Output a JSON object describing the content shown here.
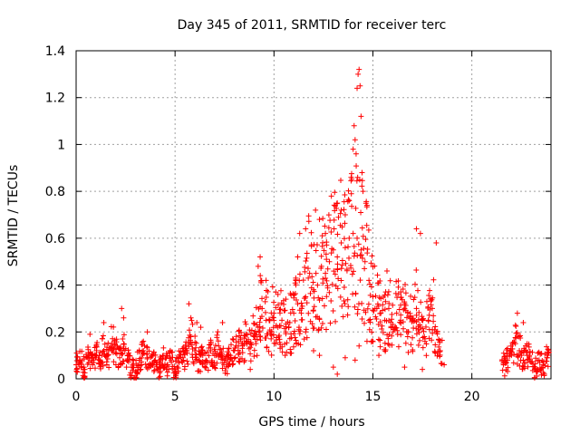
{
  "chart_data": {
    "type": "scatter",
    "title": "Day 345 of 2011, SRMTID for receiver terc",
    "xlabel": "GPS time / hours",
    "ylabel": "SRMTID / TECUs",
    "xlim": [
      0,
      24
    ],
    "ylim": [
      0,
      1.4
    ],
    "x_ticks": [
      0,
      5,
      10,
      15,
      20
    ],
    "x_tick_labels": [
      "0",
      "5",
      "10",
      "15",
      "20"
    ],
    "y_ticks": [
      0,
      0.2,
      0.4,
      0.6,
      0.8,
      1,
      1.2,
      1.4
    ],
    "y_tick_labels": [
      "0",
      "0.2",
      "0.4",
      "0.6",
      "0.8",
      "1",
      "1.2",
      "1.4"
    ],
    "grid": true,
    "marker": "+",
    "color": "#ff0000",
    "series": [
      {
        "name": "SRMTID",
        "points": [
          [
            0.0,
            0.06
          ],
          [
            0.2,
            0.08
          ],
          [
            0.4,
            0.05
          ],
          [
            0.6,
            0.09
          ],
          [
            0.8,
            0.07
          ],
          [
            1.0,
            0.1
          ],
          [
            1.2,
            0.08
          ],
          [
            1.4,
            0.12
          ],
          [
            1.6,
            0.1
          ],
          [
            1.8,
            0.15
          ],
          [
            2.0,
            0.11
          ],
          [
            2.2,
            0.09
          ],
          [
            2.4,
            0.13
          ],
          [
            2.6,
            0.08
          ],
          [
            2.8,
            0.05
          ],
          [
            3.0,
            0.03
          ],
          [
            3.2,
            0.08
          ],
          [
            3.4,
            0.12
          ],
          [
            3.6,
            0.09
          ],
          [
            3.8,
            0.06
          ],
          [
            4.0,
            0.08
          ],
          [
            4.2,
            0.05
          ],
          [
            4.4,
            0.1
          ],
          [
            4.6,
            0.06
          ],
          [
            4.8,
            0.08
          ],
          [
            5.0,
            0.04
          ],
          [
            5.2,
            0.07
          ],
          [
            5.4,
            0.09
          ],
          [
            5.6,
            0.12
          ],
          [
            5.8,
            0.18
          ],
          [
            6.0,
            0.12
          ],
          [
            6.2,
            0.08
          ],
          [
            6.4,
            0.1
          ],
          [
            6.6,
            0.07
          ],
          [
            6.8,
            0.12
          ],
          [
            7.0,
            0.1
          ],
          [
            7.2,
            0.14
          ],
          [
            7.4,
            0.09
          ],
          [
            7.6,
            0.07
          ],
          [
            7.8,
            0.1
          ],
          [
            8.0,
            0.12
          ],
          [
            8.2,
            0.14
          ],
          [
            8.4,
            0.13
          ],
          [
            8.6,
            0.16
          ],
          [
            8.8,
            0.15
          ],
          [
            9.0,
            0.18
          ],
          [
            9.2,
            0.22
          ],
          [
            9.4,
            0.3
          ],
          [
            9.6,
            0.25
          ],
          [
            9.8,
            0.2
          ],
          [
            10.0,
            0.28
          ],
          [
            10.2,
            0.22
          ],
          [
            10.4,
            0.25
          ],
          [
            10.6,
            0.2
          ],
          [
            10.8,
            0.24
          ],
          [
            11.0,
            0.28
          ],
          [
            11.2,
            0.32
          ],
          [
            11.4,
            0.3
          ],
          [
            11.6,
            0.35
          ],
          [
            11.8,
            0.45
          ],
          [
            12.0,
            0.38
          ],
          [
            12.2,
            0.4
          ],
          [
            12.4,
            0.48
          ],
          [
            12.6,
            0.45
          ],
          [
            12.8,
            0.5
          ],
          [
            13.0,
            0.55
          ],
          [
            13.2,
            0.52
          ],
          [
            13.4,
            0.58
          ],
          [
            13.6,
            0.56
          ],
          [
            13.8,
            0.6
          ],
          [
            14.0,
            0.62
          ],
          [
            14.2,
            0.6
          ],
          [
            14.4,
            0.55
          ],
          [
            14.6,
            0.5
          ],
          [
            14.8,
            0.42
          ],
          [
            15.0,
            0.35
          ],
          [
            15.2,
            0.3
          ],
          [
            15.4,
            0.28
          ],
          [
            15.6,
            0.25
          ],
          [
            15.8,
            0.3
          ],
          [
            16.0,
            0.22
          ],
          [
            16.2,
            0.28
          ],
          [
            16.4,
            0.25
          ],
          [
            16.6,
            0.3
          ],
          [
            16.8,
            0.2
          ],
          [
            17.0,
            0.25
          ],
          [
            17.2,
            0.3
          ],
          [
            17.4,
            0.22
          ],
          [
            17.6,
            0.18
          ],
          [
            17.8,
            0.25
          ],
          [
            18.0,
            0.3
          ],
          [
            18.2,
            0.2
          ],
          [
            18.4,
            0.12
          ],
          [
            21.6,
            0.06
          ],
          [
            21.8,
            0.08
          ],
          [
            22.0,
            0.1
          ],
          [
            22.2,
            0.15
          ],
          [
            22.4,
            0.12
          ],
          [
            22.6,
            0.08
          ],
          [
            22.8,
            0.1
          ],
          [
            23.0,
            0.07
          ],
          [
            23.2,
            0.05
          ],
          [
            23.4,
            0.08
          ],
          [
            23.6,
            0.06
          ],
          [
            23.8,
            0.09
          ]
        ]
      }
    ],
    "outliers": [
      [
        0.7,
        0.19
      ],
      [
        1.4,
        0.24
      ],
      [
        2.3,
        0.3
      ],
      [
        2.4,
        0.26
      ],
      [
        3.4,
        0.16
      ],
      [
        3.6,
        0.2
      ],
      [
        5.7,
        0.32
      ],
      [
        5.8,
        0.26
      ],
      [
        6.1,
        0.24
      ],
      [
        6.3,
        0.22
      ],
      [
        7.4,
        0.24
      ],
      [
        9.2,
        0.48
      ],
      [
        9.3,
        0.52
      ],
      [
        9.6,
        0.42
      ],
      [
        10.2,
        0.36
      ],
      [
        10.6,
        0.34
      ],
      [
        11.1,
        0.43
      ],
      [
        11.2,
        0.52
      ],
      [
        11.3,
        0.62
      ],
      [
        11.6,
        0.64
      ],
      [
        12.1,
        0.72
      ],
      [
        12.3,
        0.68
      ],
      [
        12.6,
        0.62
      ],
      [
        12.9,
        0.78
      ],
      [
        13.2,
        0.75
      ],
      [
        13.4,
        0.72
      ],
      [
        13.6,
        0.7
      ],
      [
        13.8,
        0.76
      ],
      [
        13.9,
        0.86
      ],
      [
        14.0,
        0.98
      ],
      [
        14.05,
        1.08
      ],
      [
        14.1,
        1.02
      ],
      [
        14.15,
        0.96
      ],
      [
        14.2,
        1.24
      ],
      [
        14.25,
        1.3
      ],
      [
        14.3,
        1.32
      ],
      [
        14.35,
        1.25
      ],
      [
        14.4,
        1.12
      ],
      [
        14.45,
        0.88
      ],
      [
        14.5,
        0.8
      ],
      [
        14.7,
        0.74
      ],
      [
        17.2,
        0.64
      ],
      [
        17.4,
        0.62
      ],
      [
        18.2,
        0.58
      ],
      [
        22.3,
        0.28
      ],
      [
        22.6,
        0.24
      ],
      [
        12.0,
        0.12
      ],
      [
        12.3,
        0.1
      ],
      [
        13.0,
        0.05
      ],
      [
        13.2,
        0.02
      ],
      [
        13.6,
        0.09
      ],
      [
        14.1,
        0.08
      ],
      [
        14.3,
        0.14
      ],
      [
        14.7,
        0.16
      ],
      [
        15.3,
        0.1
      ],
      [
        16.6,
        0.05
      ],
      [
        17.5,
        0.04
      ],
      [
        18.6,
        0.06
      ],
      [
        11.6,
        0.2
      ],
      [
        8.8,
        0.04
      ]
    ]
  }
}
